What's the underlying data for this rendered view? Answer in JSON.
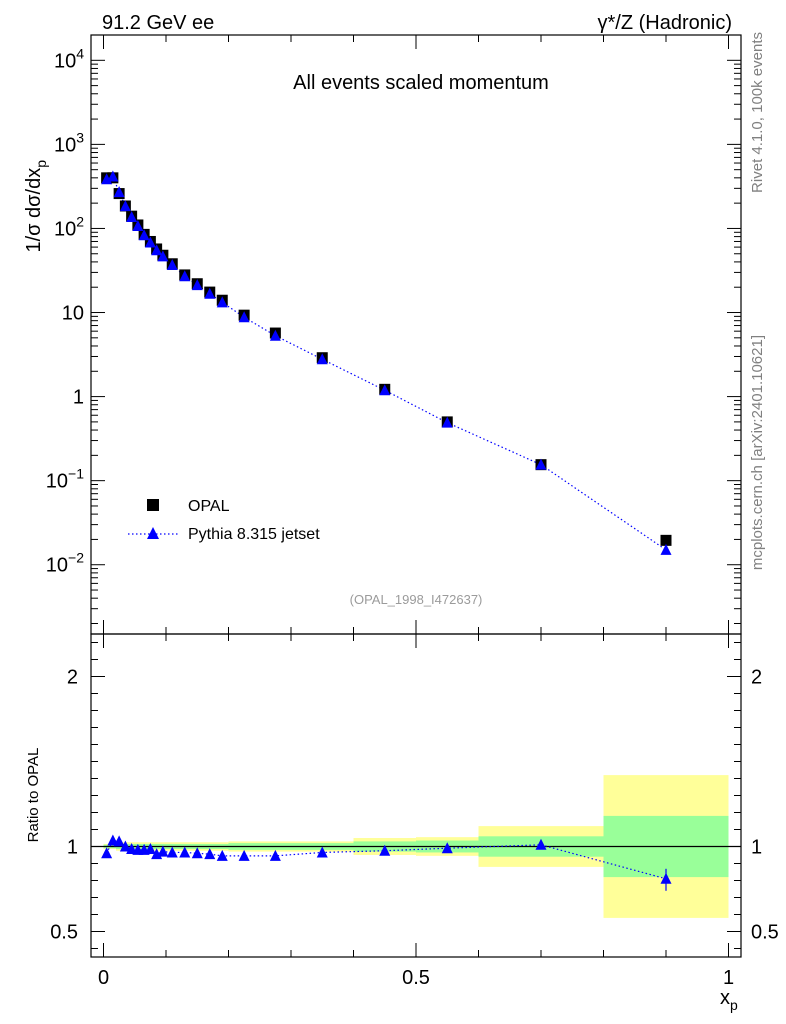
{
  "header": {
    "left": "91.2 GeV ee",
    "right": "γ*/Z (Hadronic)"
  },
  "side": {
    "version": "Rivet 4.1.0,  100k events",
    "site": "mcplots.cern.ch [arXiv:2401.10621]"
  },
  "chart_data": {
    "type": "scatter",
    "title": "All events scaled momentum",
    "analysis_tag": "(OPAL_1998_I472637)",
    "xlabel_main": "x",
    "xlabel_sub": "p",
    "ylabel_main": "1/σ  dσ/dx",
    "ylabel_sub": "p",
    "ratio_ylabel": "Ratio to OPAL",
    "xlim": [
      -0.02,
      1.02
    ],
    "ylim_log": [
      0.0015,
      20000
    ],
    "ratio_ylim": [
      0.35,
      2.25
    ],
    "x_ticks": [
      0,
      0.5,
      1
    ],
    "x_tick_labels": [
      "0",
      "0.5",
      "1"
    ],
    "y_ticks": [
      0.01,
      0.1,
      1,
      10,
      100,
      1000,
      10000
    ],
    "y_tick_labels": [
      {
        "base": "10",
        "exp": "−2"
      },
      {
        "base": "10",
        "exp": "−1"
      },
      {
        "base": "1",
        "exp": ""
      },
      {
        "base": "10",
        "exp": ""
      },
      {
        "base": "10",
        "exp": "2"
      },
      {
        "base": "10",
        "exp": "3"
      },
      {
        "base": "10",
        "exp": "4"
      }
    ],
    "ratio_ticks": [
      0.5,
      1,
      2
    ],
    "ratio_tick_labels": [
      "0.5",
      "1",
      "2"
    ],
    "legend": [
      {
        "name": "OPAL",
        "marker": "square",
        "color": "#000000"
      },
      {
        "name": "Pythia 8.315 jetset",
        "marker": "triangle",
        "color": "#0000ff"
      }
    ],
    "x": [
      0.005,
      0.015,
      0.025,
      0.035,
      0.045,
      0.055,
      0.065,
      0.075,
      0.085,
      0.095,
      0.11,
      0.13,
      0.15,
      0.17,
      0.19,
      0.225,
      0.275,
      0.35,
      0.45,
      0.55,
      0.7,
      0.9
    ],
    "series": [
      {
        "name": "OPAL",
        "values": [
          400,
          400,
          260,
          185,
          140,
          110,
          85,
          70,
          57,
          48,
          38,
          28,
          22,
          17.5,
          14,
          9.3,
          5.7,
          2.9,
          1.22,
          0.5,
          0.155,
          0.0195
        ]
      },
      {
        "name": "Pythia 8.315 jetset",
        "values": [
          385,
          415,
          270,
          184,
          137,
          107,
          83,
          68,
          55,
          46.5,
          36.7,
          27,
          21.2,
          16.7,
          13.2,
          8.8,
          5.3,
          2.78,
          1.19,
          0.49,
          0.155,
          0.015
        ]
      }
    ],
    "ratio": {
      "values": [
        0.96,
        1.035,
        1.03,
        1.0,
        0.985,
        0.98,
        0.98,
        0.985,
        0.955,
        0.97,
        0.965,
        0.965,
        0.96,
        0.955,
        0.945,
        0.945,
        0.945,
        0.965,
        0.975,
        0.99,
        1.01,
        0.81
      ],
      "bands": [
        {
          "x0": 0.0,
          "x1": 0.02,
          "stat": 0.01,
          "total": 0.015
        },
        {
          "x0": 0.02,
          "x1": 0.1,
          "stat": 0.015,
          "total": 0.025
        },
        {
          "x0": 0.1,
          "x1": 0.2,
          "stat": 0.015,
          "total": 0.025
        },
        {
          "x0": 0.2,
          "x1": 0.4,
          "stat": 0.02,
          "total": 0.03
        },
        {
          "x0": 0.4,
          "x1": 0.5,
          "stat": 0.03,
          "total": 0.05
        },
        {
          "x0": 0.5,
          "x1": 0.6,
          "stat": 0.035,
          "total": 0.055
        },
        {
          "x0": 0.6,
          "x1": 0.8,
          "stat": 0.06,
          "total": 0.12
        },
        {
          "x0": 0.8,
          "x1": 1.0,
          "stat": 0.18,
          "total": 0.42
        }
      ]
    }
  }
}
